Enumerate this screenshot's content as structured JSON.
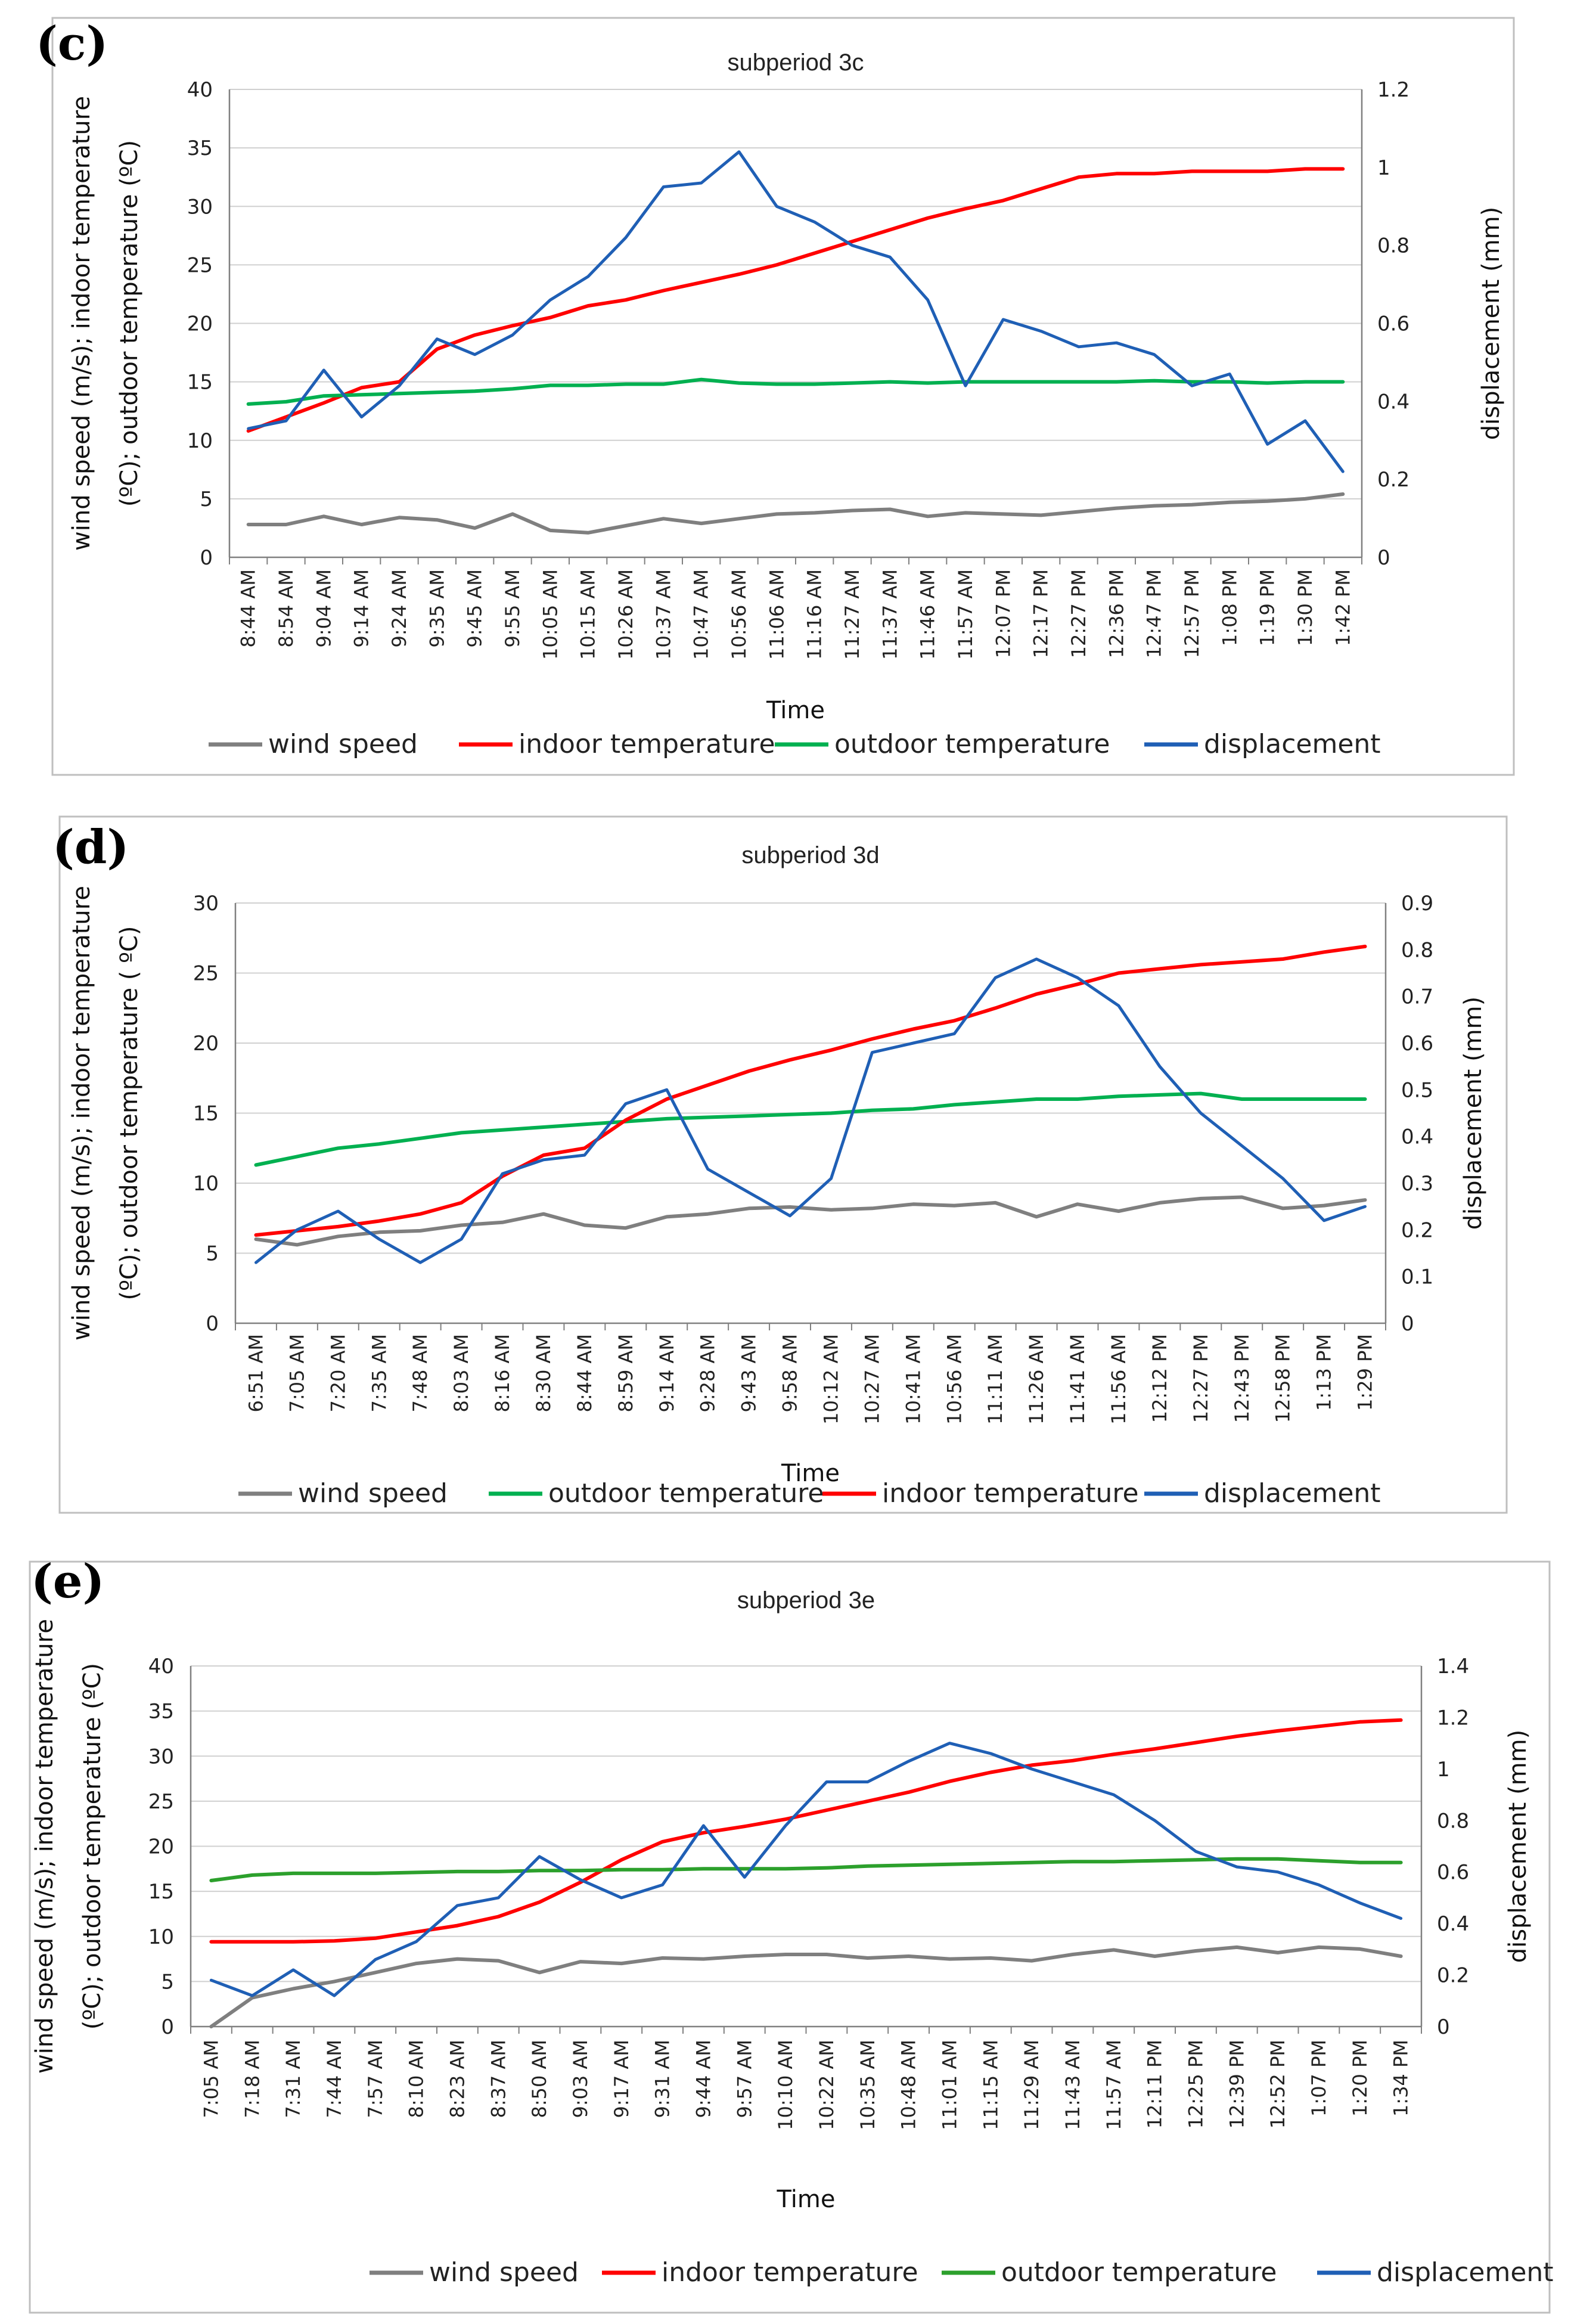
{
  "chart_data": [
    {
      "type": "line",
      "panel_label": "(c)",
      "title": "subperiod 3c",
      "xlabel": "Time",
      "ylabel_line1": "wind speed (m/s); indoor temperature",
      "ylabel_line2": "(ºC); outdoor temperature (ºC)",
      "y2label": "displacement (mm)",
      "ylim": [
        0,
        40
      ],
      "yticks": [
        0,
        5,
        10,
        15,
        20,
        25,
        30,
        35,
        40
      ],
      "y2lim": [
        0,
        1.2
      ],
      "y2ticks": [
        "0",
        "0.2",
        "0.4",
        "0.6",
        "0.8",
        "1",
        "1.2"
      ],
      "categories": [
        "8:44 AM",
        "8:54 AM",
        "9:04 AM",
        "9:14 AM",
        "9:24 AM",
        "9:35 AM",
        "9:45 AM",
        "9:55 AM",
        "10:05 AM",
        "10:15 AM",
        "10:26 AM",
        "10:37 AM",
        "10:47 AM",
        "10:56 AM",
        "11:06 AM",
        "11:16 AM",
        "11:27 AM",
        "11:37 AM",
        "11:46 AM",
        "11:57 AM",
        "12:07 PM",
        "12:17 PM",
        "12:27 PM",
        "12:36 PM",
        "12:47 PM",
        "12:57 PM",
        "1:08 PM",
        "1:19 PM",
        "1:30 PM",
        "1:42 PM"
      ],
      "legend": [
        "wind speed",
        "indoor temperature",
        "outdoor temperature",
        "displacement"
      ],
      "series": [
        {
          "name": "wind speed",
          "axis": "left",
          "color": "#7f7f7f",
          "values": [
            2.8,
            2.8,
            3.5,
            2.8,
            3.4,
            3.2,
            2.5,
            3.7,
            2.3,
            2.1,
            2.7,
            3.3,
            2.9,
            3.3,
            3.7,
            3.8,
            4.0,
            4.1,
            3.5,
            3.8,
            3.7,
            3.6,
            3.9,
            4.2,
            4.4,
            4.5,
            4.7,
            4.8,
            5.0,
            5.4
          ]
        },
        {
          "name": "indoor temperature",
          "axis": "left",
          "color": "#ff0000",
          "values": [
            10.8,
            12.0,
            13.2,
            14.5,
            15.0,
            17.8,
            19.0,
            19.8,
            20.5,
            21.5,
            22.0,
            22.8,
            23.5,
            24.2,
            25.0,
            26.0,
            27.0,
            28.0,
            29.0,
            29.8,
            30.5,
            31.5,
            32.5,
            32.8,
            32.8,
            33.0,
            33.0,
            33.0,
            33.2,
            33.2
          ]
        },
        {
          "name": "outdoor temperature",
          "axis": "left",
          "color": "#00b050",
          "values": [
            13.1,
            13.3,
            13.8,
            13.9,
            14.0,
            14.1,
            14.2,
            14.4,
            14.7,
            14.7,
            14.8,
            14.8,
            15.2,
            14.9,
            14.8,
            14.8,
            14.9,
            15.0,
            14.9,
            15.0,
            15.0,
            15.0,
            15.0,
            15.0,
            15.1,
            15.0,
            15.0,
            14.9,
            15.0,
            15.0
          ]
        },
        {
          "name": "displacement",
          "axis": "right",
          "color": "#1f5fb5",
          "values": [
            0.33,
            0.35,
            0.48,
            0.36,
            0.44,
            0.56,
            0.52,
            0.57,
            0.66,
            0.72,
            0.82,
            0.95,
            0.96,
            1.04,
            0.9,
            0.86,
            0.8,
            0.77,
            0.66,
            0.44,
            0.61,
            0.58,
            0.54,
            0.55,
            0.52,
            0.44,
            0.47,
            0.29,
            0.35,
            0.22
          ]
        }
      ]
    },
    {
      "type": "line",
      "panel_label": "(d)",
      "title": "subperiod 3d",
      "xlabel": "Time",
      "ylabel_line1": "wind speed (m/s); indoor temperature",
      "ylabel_line2": "(ºC); outdoor temperature ( ºC)",
      "y2label": "displacement (mm)",
      "ylim": [
        0,
        30
      ],
      "yticks": [
        0,
        5,
        10,
        15,
        20,
        25,
        30
      ],
      "y2lim": [
        0,
        0.9
      ],
      "y2ticks": [
        "0",
        "0.1",
        "0.2",
        "0.3",
        "0.4",
        "0.5",
        "0.6",
        "0.7",
        "0.8",
        "0.9"
      ],
      "categories": [
        "6:51 AM",
        "7:05 AM",
        "7:20 AM",
        "7:35 AM",
        "7:48 AM",
        "8:03 AM",
        "8:16 AM",
        "8:30 AM",
        "8:44 AM",
        "8:59 AM",
        "9:14 AM",
        "9:28 AM",
        "9:43 AM",
        "9:58 AM",
        "10:12 AM",
        "10:27 AM",
        "10:41 AM",
        "10:56 AM",
        "11:11 AM",
        "11:26 AM",
        "11:41 AM",
        "11:56 AM",
        "12:12 PM",
        "12:27 PM",
        "12:43 PM",
        "12:58 PM",
        "1:13 PM",
        "1:29 PM"
      ],
      "legend": [
        "wind speed",
        "outdoor temperature",
        "indoor temperature",
        "displacement"
      ],
      "series": [
        {
          "name": "wind speed",
          "axis": "left",
          "color": "#7f7f7f",
          "values": [
            6.0,
            5.6,
            6.2,
            6.5,
            6.6,
            7.0,
            7.2,
            7.8,
            7.0,
            6.8,
            7.6,
            7.8,
            8.2,
            8.3,
            8.1,
            8.2,
            8.5,
            8.4,
            8.6,
            7.6,
            8.5,
            8.0,
            8.6,
            8.9,
            9.0,
            8.2,
            8.4,
            8.8
          ]
        },
        {
          "name": "outdoor temperature",
          "axis": "left",
          "color": "#00b050",
          "values": [
            11.3,
            11.9,
            12.5,
            12.8,
            13.2,
            13.6,
            13.8,
            14.0,
            14.2,
            14.4,
            14.6,
            14.7,
            14.8,
            14.9,
            15.0,
            15.2,
            15.3,
            15.6,
            15.8,
            16.0,
            16.0,
            16.2,
            16.3,
            16.4,
            16.0,
            16.0,
            16.0,
            16.0
          ]
        },
        {
          "name": "indoor temperature",
          "axis": "left",
          "color": "#ff0000",
          "values": [
            6.3,
            6.6,
            6.9,
            7.3,
            7.8,
            8.6,
            10.5,
            12.0,
            12.5,
            14.5,
            16.0,
            17.0,
            18.0,
            18.8,
            19.5,
            20.3,
            21.0,
            21.6,
            22.5,
            23.5,
            24.2,
            25.0,
            25.3,
            25.6,
            25.8,
            26.0,
            26.5,
            26.9
          ]
        },
        {
          "name": "displacement",
          "axis": "right",
          "color": "#1f5fb5",
          "values": [
            0.13,
            0.2,
            0.24,
            0.18,
            0.13,
            0.18,
            0.32,
            0.35,
            0.36,
            0.47,
            0.5,
            0.33,
            0.28,
            0.23,
            0.31,
            0.58,
            0.6,
            0.62,
            0.74,
            0.78,
            0.74,
            0.68,
            0.55,
            0.45,
            0.38,
            0.31,
            0.22,
            0.25
          ]
        }
      ]
    },
    {
      "type": "line",
      "panel_label": "(e)",
      "title": "subperiod 3e",
      "xlabel": "Time",
      "ylabel_line1": "wind speed (m/s); indoor temperature",
      "ylabel_line2": "(ºC); outdoor temperature (ºC)",
      "y2label": "displacement (mm)",
      "ylim": [
        0,
        40
      ],
      "yticks": [
        0,
        5,
        10,
        15,
        20,
        25,
        30,
        35,
        40
      ],
      "y2lim": [
        0,
        1.4
      ],
      "y2ticks": [
        "0",
        "0.2",
        "0.4",
        "0.6",
        "0.8",
        "1",
        "1.2",
        "1.4"
      ],
      "categories": [
        "7:05 AM",
        "7:18 AM",
        "7:31 AM",
        "7:44 AM",
        "7:57 AM",
        "8:10 AM",
        "8:23 AM",
        "8:37 AM",
        "8:50 AM",
        "9:03 AM",
        "9:17 AM",
        "9:31 AM",
        "9:44 AM",
        "9:57 AM",
        "10:10 AM",
        "10:22 AM",
        "10:35 AM",
        "10:48 AM",
        "11:01 AM",
        "11:15 AM",
        "11:29 AM",
        "11:43 AM",
        "11:57 AM",
        "12:11 PM",
        "12:25 PM",
        "12:39 PM",
        "12:52 PM",
        "1:07 PM",
        "1:20 PM",
        "1:34 PM"
      ],
      "legend": [
        "wind speed",
        "indoor temperature",
        "outdoor temperature",
        "displacement"
      ],
      "series": [
        {
          "name": "wind speed",
          "axis": "left",
          "color": "#7f7f7f",
          "values": [
            0.0,
            3.2,
            4.2,
            5.0,
            6.0,
            7.0,
            7.5,
            7.3,
            6.0,
            7.2,
            7.0,
            7.6,
            7.5,
            7.8,
            8.0,
            8.0,
            7.6,
            7.8,
            7.5,
            7.6,
            7.3,
            8.0,
            8.5,
            7.8,
            8.4,
            8.8,
            8.2,
            8.8,
            8.6,
            7.8
          ]
        },
        {
          "name": "indoor temperature",
          "axis": "left",
          "color": "#ff0000",
          "values": [
            9.4,
            9.4,
            9.4,
            9.5,
            9.8,
            10.5,
            11.2,
            12.2,
            13.8,
            16.0,
            18.5,
            20.5,
            21.5,
            22.2,
            23.0,
            24.0,
            25.0,
            26.0,
            27.2,
            28.2,
            29.0,
            29.5,
            30.2,
            30.8,
            31.5,
            32.2,
            32.8,
            33.3,
            33.8,
            34.0
          ]
        },
        {
          "name": "outdoor temperature",
          "axis": "left",
          "color": "#2ca02c",
          "values": [
            16.2,
            16.8,
            17.0,
            17.0,
            17.0,
            17.1,
            17.2,
            17.2,
            17.3,
            17.3,
            17.4,
            17.4,
            17.5,
            17.5,
            17.5,
            17.6,
            17.8,
            17.9,
            18.0,
            18.1,
            18.2,
            18.3,
            18.3,
            18.4,
            18.5,
            18.6,
            18.6,
            18.4,
            18.2,
            18.2
          ]
        },
        {
          "name": "displacement",
          "axis": "right",
          "color": "#1f5fb5",
          "values": [
            0.18,
            0.12,
            0.22,
            0.12,
            0.26,
            0.33,
            0.47,
            0.5,
            0.66,
            0.57,
            0.5,
            0.55,
            0.78,
            0.58,
            0.78,
            0.95,
            0.95,
            1.03,
            1.1,
            1.06,
            1.0,
            0.95,
            0.9,
            0.8,
            0.68,
            0.62,
            0.6,
            0.55,
            0.48,
            0.42
          ]
        }
      ]
    }
  ]
}
